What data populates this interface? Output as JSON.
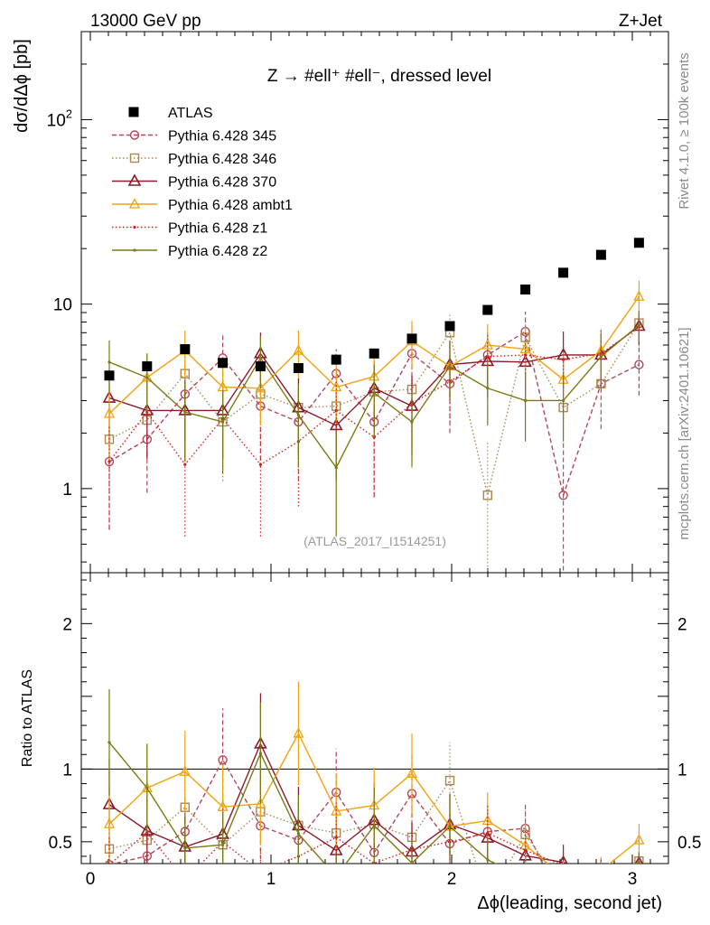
{
  "header": {
    "left": "13000 GeV pp",
    "right": "Z+Jet"
  },
  "side_labels": {
    "rivet": "Rivet 4.1.0, ≥ 100k events",
    "mcplots": "mcplots.cern.ch [arXiv:2401.10621]"
  },
  "chart_data": {
    "type": "scatter",
    "title": "Z → #ell⁺ #ell⁻, dressed level",
    "analysis_tag": "(ATLAS_2017_I1514251)",
    "xlabel": "Δϕ(leading, second jet)",
    "ylabel": "dσ/dΔϕ [pb]",
    "ratio_ylabel": "Ratio to ATLAS",
    "xlim": [
      -0.05,
      3.2
    ],
    "ylim": [
      0.35,
      300
    ],
    "yscale": "log",
    "ratio_ylim": [
      0.35,
      2.35
    ],
    "x_ticks": [
      0,
      1,
      2,
      3
    ],
    "y_ticks": [
      1,
      10,
      100
    ],
    "y_tick_labels": [
      "1",
      "10",
      "10²"
    ],
    "ratio_ticks": [
      0.5,
      1,
      2
    ],
    "ratio_tick_labels": [
      "0.5",
      "1",
      "2"
    ],
    "x": [
      0.105,
      0.314,
      0.524,
      0.733,
      0.942,
      1.152,
      1.361,
      1.571,
      1.78,
      1.99,
      2.199,
      2.408,
      2.618,
      2.827,
      3.037
    ],
    "data": {
      "name": "ATLAS",
      "color": "#000000",
      "values": [
        4.1,
        4.6,
        5.7,
        4.8,
        4.6,
        4.5,
        5.0,
        5.4,
        6.5,
        7.6,
        9.3,
        12.0,
        14.8,
        18.5,
        21.5
      ]
    },
    "series": [
      {
        "name": "Pythia 6.428 345",
        "color": "#b5465a",
        "dash": "5,3",
        "marker": "circle",
        "values": [
          1.4,
          1.85,
          3.25,
          5.1,
          2.8,
          2.3,
          4.2,
          2.3,
          5.4,
          3.7,
          5.3,
          7.1,
          0.92,
          3.7,
          4.7
        ],
        "err": [
          0.8,
          0.9,
          1.4,
          1.7,
          1.5,
          1.2,
          1.5,
          1.4,
          1.7,
          1.7,
          1.8,
          2.0,
          0.9,
          1.6,
          1.5
        ]
      },
      {
        "name": "Pythia 6.428 346",
        "color": "#a88a50",
        "dash": "1.5,2.5",
        "marker": "square",
        "values": [
          1.85,
          2.35,
          4.2,
          2.3,
          3.25,
          2.75,
          2.8,
          3.35,
          3.45,
          7.0,
          0.92,
          6.6,
          2.75,
          3.7,
          7.9
        ],
        "err": [
          0.9,
          1.1,
          1.5,
          1.2,
          1.4,
          1.3,
          1.3,
          1.4,
          1.4,
          2.0,
          0.9,
          2.0,
          1.3,
          1.6,
          2.0
        ]
      },
      {
        "name": "Pythia 6.428 370",
        "color": "#8b1a2b",
        "dash": "",
        "marker": "triangle",
        "values": [
          3.1,
          2.65,
          2.65,
          2.65,
          5.4,
          2.75,
          2.2,
          3.5,
          2.8,
          4.7,
          4.9,
          4.85,
          5.3,
          5.3,
          7.6
        ],
        "err": [
          1.3,
          1.2,
          1.2,
          1.2,
          1.6,
          1.2,
          1.1,
          1.4,
          1.3,
          1.6,
          1.8,
          1.8,
          1.8,
          1.8,
          1.5
        ]
      },
      {
        "name": "Pythia 6.428 ambt1",
        "color": "#f0a20f",
        "dash": "",
        "marker": "triangle-open",
        "values": [
          2.55,
          4.0,
          5.6,
          3.55,
          3.5,
          5.6,
          3.55,
          4.05,
          6.3,
          4.6,
          6.0,
          5.7,
          3.9,
          5.6,
          11.0
        ],
        "err": [
          1.1,
          1.4,
          1.6,
          1.4,
          1.3,
          1.6,
          1.3,
          1.4,
          1.8,
          1.6,
          1.8,
          1.8,
          1.6,
          1.7,
          2.4
        ]
      },
      {
        "name": "Pythia 6.428 z1",
        "color": "#d02020",
        "dash": "1.5,2.5",
        "marker": "dot",
        "values": [
          1.4,
          2.6,
          1.35,
          2.4,
          1.35,
          1.8,
          2.65,
          1.9,
          2.9,
          3.8,
          5.2,
          5.3,
          5.0,
          5.4,
          7.5
        ],
        "err": [
          0.8,
          1.1,
          0.8,
          1.1,
          0.8,
          1.0,
          1.2,
          1.0,
          1.2,
          1.5,
          1.8,
          1.8,
          1.8,
          1.8,
          1.5
        ]
      },
      {
        "name": "Pythia 6.428 z2",
        "color": "#7b7a15",
        "dash": "",
        "marker": "dot",
        "values": [
          4.85,
          4.0,
          2.6,
          2.3,
          5.1,
          2.5,
          1.3,
          3.3,
          2.3,
          4.6,
          3.5,
          3.0,
          3.0,
          5.2,
          7.7
        ],
        "err": [
          1.5,
          1.4,
          1.2,
          1.1,
          1.6,
          1.2,
          0.75,
          1.4,
          1.0,
          1.6,
          1.3,
          1.2,
          1.2,
          1.7,
          1.5
        ]
      }
    ]
  }
}
